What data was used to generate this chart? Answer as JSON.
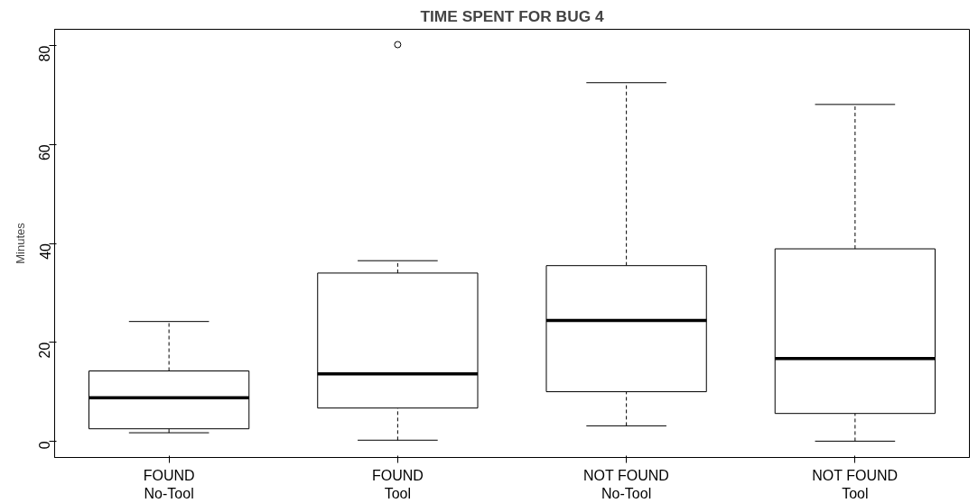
{
  "chart_data": {
    "type": "box",
    "title": "TIME SPENT FOR BUG 4",
    "ylabel": "Minutes",
    "categories": [
      "FOUND\nNo-Tool",
      "FOUND\nTool",
      "NOT FOUND\nNo-Tool",
      "NOT FOUND\nTool"
    ],
    "boxes": [
      {
        "low": 1.7,
        "q1": 2.5,
        "median": 8.8,
        "q3": 14.2,
        "high": 24.2
      },
      {
        "low": 0.2,
        "q1": 6.7,
        "median": 13.6,
        "q3": 34.0,
        "high": 36.5,
        "outliers": [
          80.2
        ]
      },
      {
        "low": 3.1,
        "q1": 10.0,
        "median": 24.4,
        "q3": 35.5,
        "high": 72.5
      },
      {
        "low": 0,
        "q1": 5.6,
        "median": 16.7,
        "q3": 38.9,
        "high": 68.1
      }
    ],
    "ylim": [
      -3.3,
      83.3
    ],
    "yticks": [
      0,
      20,
      40,
      60,
      80
    ],
    "grid": false
  }
}
